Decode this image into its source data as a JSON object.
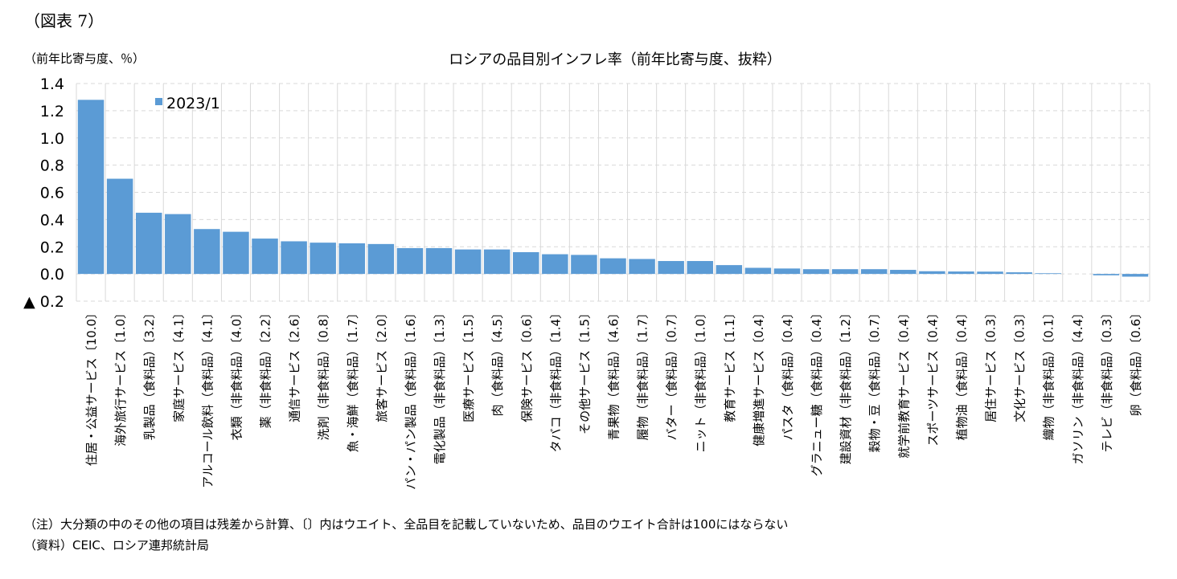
{
  "figure_label": "（図表 7）",
  "unit_label": "（前年比寄与度、％）",
  "notes": [
    "（注）大分類の中のその他の項目は残差から計算、〔〕内はウエイト、全品目を記載していないため、品目のウエイト合計は100にはならない",
    "（資料）CEIC、ロシア連邦統計局"
  ],
  "chart_data": {
    "type": "bar",
    "title": "ロシアの品目別インフレ率（前年比寄与度、抜粋）",
    "categories": [
      "住居・公益サービス〔10.0〕",
      "海外旅行サービス〔1.0〕",
      "乳製品（食料品）〔3.2〕",
      "家庭サービス〔4.1〕",
      "アルコール飲料（食料品）〔4.1〕",
      "衣類（非食料品）〔4.0〕",
      "薬（非食料品）〔2.2〕",
      "通信サービス〔2.6〕",
      "洗剤（非食料品）〔0.8〕",
      "魚・海鮮（食料品）〔1.7〕",
      "旅客サービス〔2.0〕",
      "パン・パン製品（食料品）〔1.6〕",
      "電化製品（非食料品）〔1.3〕",
      "医療サービス〔1.5〕",
      "肉（食料品）〔4.5〕",
      "保険サービス〔0.6〕",
      "タバコ（非食料品）〔1.4〕",
      "その他サービス〔1.5〕",
      "青果物（食料品）〔4.6〕",
      "履物（非食料品）〔1.7〕",
      "バター（食料品）〔0.7〕",
      "ニット（非食料品）〔1.0〕",
      "教育サービス〔1.1〕",
      "健康増進サービス〔0.4〕",
      "パスタ（食料品）〔0.4〕",
      "グラニュー糖（食料品）〔0.4〕",
      "建設資材（非食料品）〔1.2〕",
      "穀物・豆（食料品）〔0.7〕",
      "就学前教育サービス〔0.4〕",
      "スポーツサービス〔0.4〕",
      "植物油（食料品）〔0.4〕",
      "居住サービス〔0.3〕",
      "文化サービス〔0.3〕",
      "織物（非食料品）〔0.1〕",
      "ガソリン（非食料品）〔4.4〕",
      "テレビ（非食料品）〔0.3〕",
      "卵（食料品）〔0.6〕"
    ],
    "series": [
      {
        "name": "2023/1",
        "color": "#5b9bd5",
        "values": [
          1.28,
          0.7,
          0.45,
          0.44,
          0.33,
          0.31,
          0.26,
          0.24,
          0.23,
          0.225,
          0.22,
          0.19,
          0.19,
          0.18,
          0.18,
          0.16,
          0.145,
          0.14,
          0.115,
          0.11,
          0.095,
          0.095,
          0.065,
          0.045,
          0.04,
          0.035,
          0.035,
          0.035,
          0.03,
          0.02,
          0.018,
          0.017,
          0.012,
          0.005,
          0.0,
          -0.01,
          -0.02
        ]
      }
    ],
    "ylim": [
      -0.2,
      1.4
    ],
    "yticks": [
      {
        "value": -0.2,
        "label": "▲ 0.2"
      },
      {
        "value": 0,
        "label": "0.0"
      },
      0.2,
      0.4,
      0.6,
      0.8,
      {
        "value": 1,
        "label": "1.0"
      },
      1.2,
      1.4
    ],
    "grid": true,
    "legend": "top-left"
  }
}
